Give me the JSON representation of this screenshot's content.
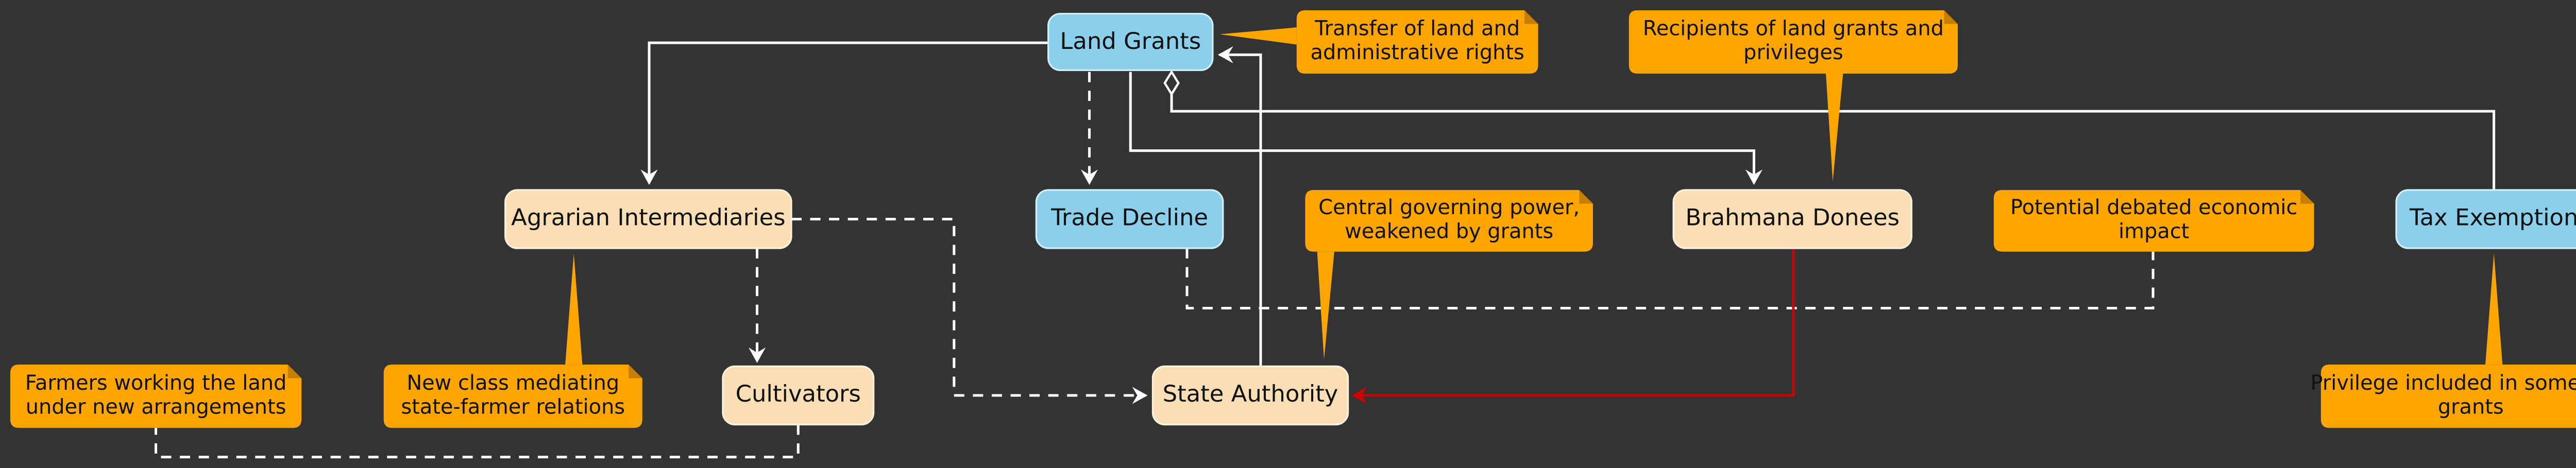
{
  "nodes": [
    {
      "label": "Land Grants"
    },
    {
      "label": "Agrarian Intermediaries"
    },
    {
      "label": "Trade Decline"
    },
    {
      "label": "Brahmana Donees"
    },
    {
      "label": "Tax Exemption"
    },
    {
      "label": "Cultivators"
    },
    {
      "label": "State Authority"
    }
  ],
  "notes": [
    {
      "lines": [
        "Transfer of land and",
        "administrative rights"
      ]
    },
    {
      "lines": [
        "Recipients of land grants and",
        "privileges"
      ]
    },
    {
      "lines": [
        "Central governing power,",
        "weakened by grants"
      ]
    },
    {
      "lines": [
        "Potential debated economic",
        "impact"
      ]
    },
    {
      "lines": [
        "Farmers working the land",
        "under new arrangements"
      ]
    },
    {
      "lines": [
        "New class mediating",
        "state-farmer relations"
      ]
    },
    {
      "lines": [
        "Privilege included in some land",
        "grants"
      ]
    }
  ]
}
